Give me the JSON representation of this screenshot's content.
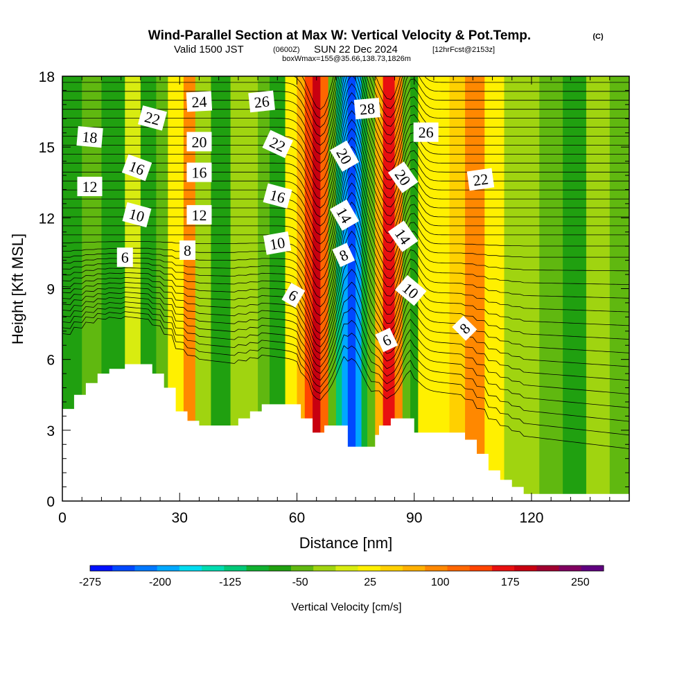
{
  "title": {
    "main": "Wind-Parallel Section at Max W: Vertical Velocity & Pot.Temp.",
    "copyright": "(C)",
    "valid_a": "Valid 1500 JST",
    "valid_zulu": "(0600Z)",
    "valid_b": "SUN 22 Dec 2024",
    "forecast": "[12hrFcst@2153z]",
    "box": "boxWmax=155@35.66,138.73,1826m"
  },
  "chart_data": {
    "type": "heatmap",
    "xlabel": "Distance [nm]",
    "ylabel": "Height [Kft MSL]",
    "xlim": [
      0,
      145
    ],
    "ylim": [
      0,
      18
    ],
    "x_ticks": [
      "0",
      "30",
      "60",
      "90",
      "120"
    ],
    "y_ticks": [
      "0",
      "3",
      "6",
      "9",
      "12",
      "15",
      "18"
    ],
    "colorbar": {
      "title": "Vertical Velocity [cm/s]",
      "ticks": [
        "-275",
        "-200",
        "-125",
        "-50",
        "25",
        "100",
        "175",
        "250"
      ],
      "levels": [
        -275,
        -250,
        -225,
        -200,
        -175,
        -150,
        -125,
        -100,
        -75,
        -50,
        -25,
        0,
        25,
        50,
        75,
        100,
        125,
        150,
        175,
        200,
        225,
        250,
        275
      ],
      "colors": [
        "#0010ff",
        "#0048ff",
        "#0078ff",
        "#00a8ff",
        "#00dcf0",
        "#00dcb0",
        "#00c878",
        "#10b030",
        "#20a010",
        "#60b810",
        "#a0d410",
        "#d8ec10",
        "#fff000",
        "#ffd000",
        "#ffb000",
        "#ff8800",
        "#ff6600",
        "#ff4400",
        "#e81010",
        "#c80010",
        "#a00030",
        "#800060",
        "#600080"
      ]
    },
    "vertical_velocity_bands": [
      {
        "x": [
          0,
          5
        ],
        "w": -55
      },
      {
        "x": [
          5,
          10
        ],
        "w": -30
      },
      {
        "x": [
          10,
          16
        ],
        "w": -70
      },
      {
        "x": [
          16,
          20
        ],
        "w": 5
      },
      {
        "x": [
          20,
          24
        ],
        "w": -75
      },
      {
        "x": [
          24,
          27
        ],
        "w": -40
      },
      {
        "x": [
          27,
          31
        ],
        "w": 30
      },
      {
        "x": [
          31,
          34
        ],
        "w": 110
      },
      {
        "x": [
          34,
          38
        ],
        "w": -20
      },
      {
        "x": [
          38,
          43
        ],
        "w": -65
      },
      {
        "x": [
          43,
          50
        ],
        "w": -10
      },
      {
        "x": [
          50,
          53
        ],
        "w": -40
      },
      {
        "x": [
          53,
          57
        ],
        "w": -65
      },
      {
        "x": [
          57,
          60
        ],
        "w": 30
      },
      {
        "x": [
          60,
          62
        ],
        "w": 80
      },
      {
        "x": [
          62,
          64
        ],
        "w": 150
      },
      {
        "x": [
          64,
          66
        ],
        "w": 200
      },
      {
        "x": [
          66,
          68
        ],
        "w": 130
      },
      {
        "x": [
          68,
          70
        ],
        "w": -30
      },
      {
        "x": [
          70,
          71.5
        ],
        "w": -120
      },
      {
        "x": [
          71.5,
          73
        ],
        "w": -200
      },
      {
        "x": [
          73,
          75
        ],
        "w": -250
      },
      {
        "x": [
          75,
          76.5
        ],
        "w": -180
      },
      {
        "x": [
          76.5,
          78
        ],
        "w": -90
      },
      {
        "x": [
          78,
          80
        ],
        "w": -40
      },
      {
        "x": [
          80,
          82
        ],
        "w": 80
      },
      {
        "x": [
          82,
          85
        ],
        "w": 180
      },
      {
        "x": [
          85,
          87
        ],
        "w": 110
      },
      {
        "x": [
          87,
          89
        ],
        "w": -50
      },
      {
        "x": [
          89,
          91
        ],
        "w": -70
      },
      {
        "x": [
          91,
          94
        ],
        "w": 40
      },
      {
        "x": [
          94,
          99
        ],
        "w": 30
      },
      {
        "x": [
          99,
          103
        ],
        "w": 60
      },
      {
        "x": [
          103,
          108
        ],
        "w": 100
      },
      {
        "x": [
          108,
          113
        ],
        "w": 30
      },
      {
        "x": [
          113,
          122
        ],
        "w": -10
      },
      {
        "x": [
          122,
          128
        ],
        "w": -30
      },
      {
        "x": [
          128,
          134
        ],
        "w": -55
      },
      {
        "x": [
          134,
          140
        ],
        "w": -20
      },
      {
        "x": [
          140,
          145
        ],
        "w": -45
      }
    ],
    "terrain_height_kft": {
      "x": [
        0,
        3,
        3,
        6,
        6,
        9,
        9,
        12,
        12,
        16,
        16,
        23,
        23,
        26,
        26,
        29,
        29,
        32,
        32,
        35,
        35,
        41,
        41,
        45,
        45,
        48,
        48,
        51,
        51,
        54,
        54,
        61,
        61,
        64,
        64,
        67,
        67,
        73,
        73,
        78,
        78,
        80,
        80,
        81,
        81,
        84,
        84,
        90,
        90,
        103,
        103,
        106,
        106,
        109,
        109,
        112,
        112,
        115,
        115,
        118,
        118,
        120,
        120,
        145
      ],
      "y": [
        3.9,
        3.9,
        4.5,
        4.5,
        5.0,
        5.0,
        5.4,
        5.4,
        5.6,
        5.6,
        5.8,
        5.8,
        5.4,
        5.4,
        4.8,
        4.8,
        3.8,
        3.8,
        3.4,
        3.4,
        3.2,
        3.2,
        3.2,
        3.2,
        3.5,
        3.5,
        3.8,
        3.8,
        4.1,
        4.1,
        4.1,
        4.1,
        3.5,
        3.5,
        2.9,
        2.9,
        3.2,
        3.2,
        2.3,
        2.3,
        2.3,
        2.3,
        2.8,
        2.8,
        3.2,
        3.2,
        3.5,
        3.5,
        2.9,
        2.9,
        2.6,
        2.6,
        2.0,
        2.0,
        1.3,
        1.3,
        0.9,
        0.9,
        0.6,
        0.6,
        0.3,
        0.3,
        0.3,
        0.3
      ]
    },
    "potential_temperature_labels": [
      {
        "text": "24",
        "x": 35,
        "y": 16.9,
        "angle": -3
      },
      {
        "text": "26",
        "x": 51,
        "y": 16.9,
        "angle": -6
      },
      {
        "text": "22",
        "x": 23,
        "y": 16.2,
        "angle": 15
      },
      {
        "text": "18",
        "x": 7,
        "y": 15.4,
        "angle": 5
      },
      {
        "text": "20",
        "x": 35,
        "y": 15.2,
        "angle": 0
      },
      {
        "text": "22",
        "x": 55,
        "y": 15.1,
        "angle": 25
      },
      {
        "text": "28",
        "x": 78,
        "y": 16.6,
        "angle": -5
      },
      {
        "text": "26",
        "x": 93,
        "y": 15.6,
        "angle": 0
      },
      {
        "text": "20",
        "x": 72,
        "y": 14.6,
        "angle": 60
      },
      {
        "text": "16",
        "x": 19,
        "y": 14.1,
        "angle": 20
      },
      {
        "text": "16",
        "x": 35,
        "y": 13.9,
        "angle": 0
      },
      {
        "text": "20",
        "x": 87,
        "y": 13.7,
        "angle": 55
      },
      {
        "text": "22",
        "x": 107,
        "y": 13.6,
        "angle": -8
      },
      {
        "text": "12",
        "x": 7,
        "y": 13.3,
        "angle": 0
      },
      {
        "text": "16",
        "x": 55,
        "y": 12.9,
        "angle": 15
      },
      {
        "text": "10",
        "x": 19,
        "y": 12.1,
        "angle": 15
      },
      {
        "text": "12",
        "x": 35,
        "y": 12.1,
        "angle": 0
      },
      {
        "text": "14",
        "x": 72,
        "y": 12.1,
        "angle": 60
      },
      {
        "text": "14",
        "x": 87,
        "y": 11.2,
        "angle": 55
      },
      {
        "text": "10",
        "x": 55,
        "y": 10.9,
        "angle": -10
      },
      {
        "text": "6",
        "x": 16,
        "y": 10.3,
        "angle": 0
      },
      {
        "text": "8",
        "x": 32,
        "y": 10.6,
        "angle": 0
      },
      {
        "text": "8",
        "x": 72,
        "y": 10.4,
        "angle": -25
      },
      {
        "text": "10",
        "x": 89,
        "y": 8.9,
        "angle": 40
      },
      {
        "text": "6",
        "x": 59,
        "y": 8.7,
        "angle": 30
      },
      {
        "text": "8",
        "x": 103,
        "y": 7.3,
        "angle": -45
      },
      {
        "text": "6",
        "x": 83,
        "y": 6.8,
        "angle": -25
      }
    ]
  }
}
